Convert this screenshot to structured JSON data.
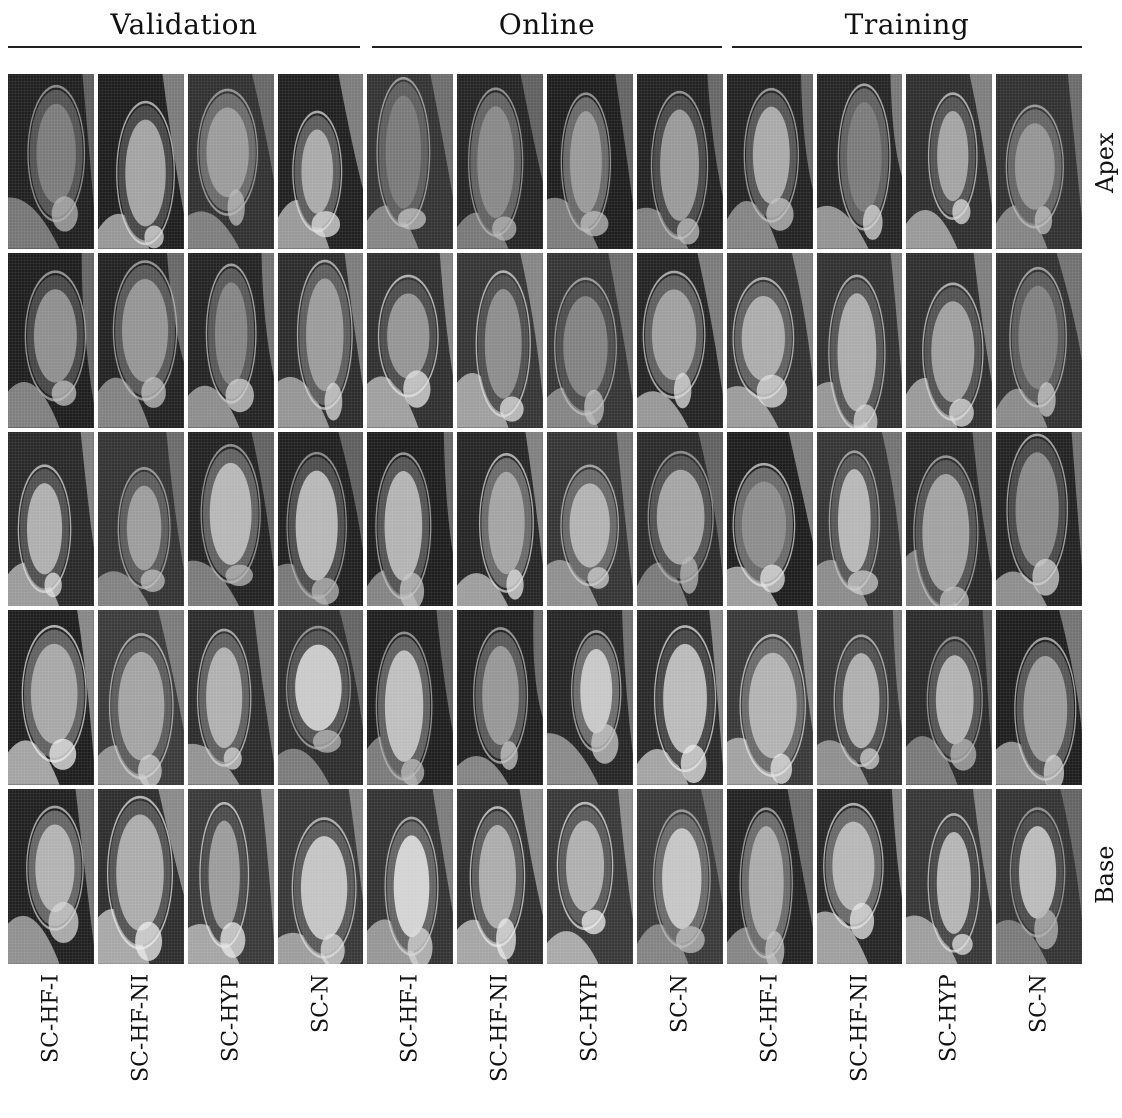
{
  "groups": [
    {
      "title": "Validation"
    },
    {
      "title": "Online"
    },
    {
      "title": "Training"
    }
  ],
  "row_labels": {
    "top": "Apex",
    "bottom": "Base"
  },
  "column_labels": [
    "SC-HF-I",
    "SC-HF-NI",
    "SC-HYP",
    "SC-N",
    "SC-HF-I",
    "SC-HF-NI",
    "SC-HYP",
    "SC-N",
    "SC-HF-I",
    "SC-HF-NI",
    "SC-HYP",
    "SC-N"
  ],
  "grid": {
    "rows": 5,
    "columns": 12,
    "image_type": "cardiac MRI short-axis slice"
  },
  "colors": {
    "background": "#ffffff",
    "tile_dark": "#2b2b2b",
    "text": "#111111"
  }
}
